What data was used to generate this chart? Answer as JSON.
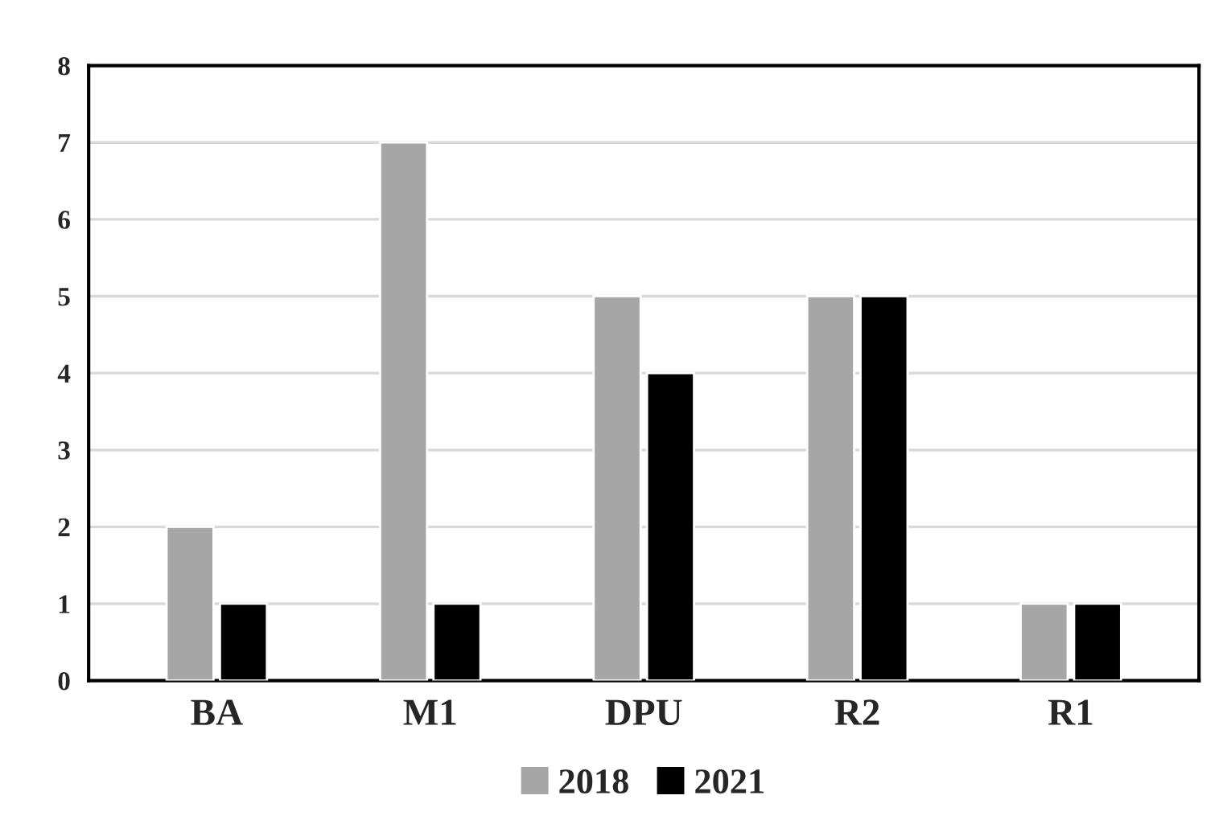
{
  "chart_data": {
    "type": "bar",
    "categories": [
      "BA",
      "M1",
      "DPU",
      "R2",
      "R1"
    ],
    "series": [
      {
        "name": "2018",
        "color": "#a6a6a6",
        "values": [
          2,
          7,
          5,
          5,
          1
        ]
      },
      {
        "name": "2021",
        "color": "#000000",
        "values": [
          1,
          1,
          4,
          5,
          1
        ]
      }
    ],
    "ylim": [
      0,
      8
    ],
    "yticks": [
      0,
      1,
      2,
      3,
      4,
      5,
      6,
      7,
      8
    ],
    "grid": "y",
    "legend": "bottom"
  }
}
